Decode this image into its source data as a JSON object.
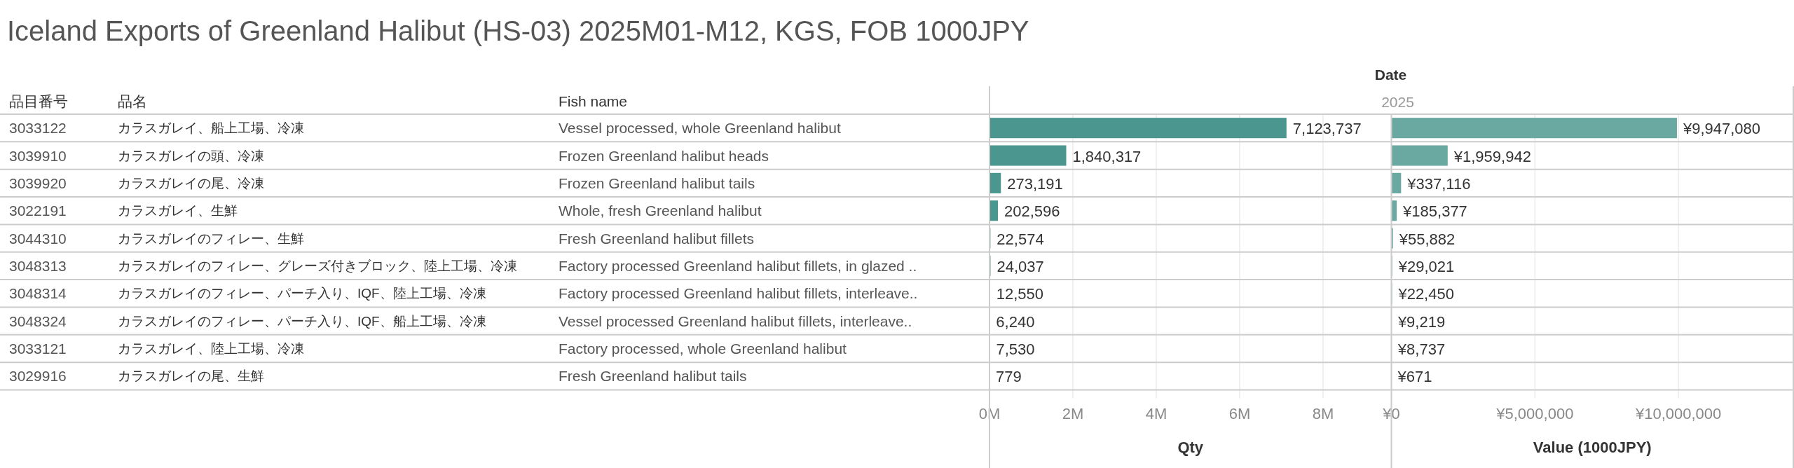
{
  "chart_data": [
    {
      "type": "other",
      "title": "Iceland Exports of Greenland Halibut (HS-03) 2025M01-M12, KGS, FOB 1000JPY",
      "annotations": [
        "品目番号",
        "品名",
        "Fish name",
        "3033122",
        "カラスガレイ、船上工場、冷凍",
        "Vessel processed, whole Greenland halibut",
        "3039910",
        "カラスガレイの頭、冷凍",
        "Frozen Greenland halibut heads",
        "3039920",
        "カラスガレイの尾、冷凍",
        "Frozen Greenland halibut tails",
        "3022191",
        "カラスガレイ、生鮮",
        "Whole, fresh Greenland halibut",
        "3044310",
        "カラスガレイのフィレー、生鮮",
        "Fresh Greenland halibut fillets",
        "3048313",
        "カラスガレイのフィレー、グレーズ付きブロック、陸上工場、冷凍",
        "Factory processed Greenland halibut fillets, in glazed ..",
        "3048314",
        "カラスガレイのフィレー、パーチ入り、IQF、陸上工場、冷凍",
        "Factory processed Greenland halibut fillets, interleave..",
        "3048324",
        "カラスガレイのフィレー、パーチ入り、IQF、船上工場、冷凍",
        "Vessel processed Greenland halibut fillets, interleave..",
        "3033121",
        "カラスガレイ、陸上工場、冷凍",
        "Factory processed, whole Greenland halibut",
        "3029916",
        "カラスガレイの尾、生鮮",
        "Fresh Greenland halibut tails",
        "Date",
        "2025"
      ]
    },
    {
      "type": "bar",
      "orientation": "horizontal",
      "categories": [
        null,
        null,
        null,
        null,
        null,
        null,
        null,
        null,
        null,
        null
      ],
      "values": [
        7123737,
        1840317,
        273191,
        202596,
        22574,
        24037,
        12550,
        6240,
        7530,
        779
      ],
      "value_labels": [
        "7,123,737",
        "1,840,317",
        "273,191",
        "202,596",
        "22,574",
        "24,037",
        "12,550",
        "6,240",
        "7,530",
        "779"
      ],
      "color": "#4b9790",
      "xlim": [
        0,
        9640000
      ],
      "xticks": [
        {
          "value": 0,
          "label": "0M"
        },
        {
          "value": 2000000,
          "label": "2M"
        },
        {
          "value": 4000000,
          "label": "4M"
        },
        {
          "value": 6000000,
          "label": "6M"
        },
        {
          "value": 8000000,
          "label": "8M"
        }
      ],
      "xlabel": "Qty",
      "grid": "x",
      "tick_labels": "x"
    },
    {
      "type": "bar",
      "orientation": "horizontal",
      "categories": [
        null,
        null,
        null,
        null,
        null,
        null,
        null,
        null,
        null,
        null
      ],
      "values": [
        9947080,
        1959942,
        337116,
        185377,
        55882,
        29021,
        22450,
        9219,
        8737,
        671
      ],
      "value_labels": [
        "¥9,947,080",
        "¥1,959,942",
        "¥337,116",
        "¥185,377",
        "¥55,882",
        "¥29,021",
        "¥22,450",
        "¥9,219",
        "¥8,737",
        "¥671"
      ],
      "color": "#6aa8a2",
      "xlim": [
        0,
        14000000
      ],
      "xticks": [
        {
          "value": 0,
          "label": "¥0"
        },
        {
          "value": 5000000,
          "label": "¥5,000,000"
        },
        {
          "value": 10000000,
          "label": "¥10,000,000"
        }
      ],
      "xlabel": "Value (1000JPY)",
      "grid": "x",
      "tick_labels": "x"
    }
  ]
}
